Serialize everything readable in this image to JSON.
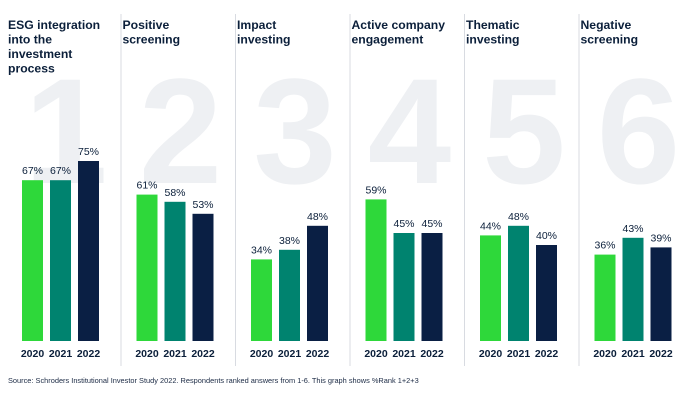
{
  "chart_data": {
    "type": "bar",
    "years": [
      "2020",
      "2021",
      "2022"
    ],
    "colors": [
      "#2ed83a",
      "#00836f",
      "#0a1f44"
    ],
    "ylim": [
      0,
      100
    ],
    "groups": [
      {
        "number": "1",
        "title_lines": [
          "ESG integration",
          "into the",
          "investment",
          "process"
        ],
        "values": [
          67,
          67,
          75
        ]
      },
      {
        "number": "2",
        "title_lines": [
          "Positive",
          "screening"
        ],
        "values": [
          61,
          58,
          53
        ]
      },
      {
        "number": "3",
        "title_lines": [
          "Impact",
          "investing"
        ],
        "values": [
          34,
          38,
          48
        ]
      },
      {
        "number": "4",
        "title_lines": [
          "Active company",
          "engagement"
        ],
        "values": [
          59,
          45,
          45
        ]
      },
      {
        "number": "5",
        "title_lines": [
          "Thematic",
          "investing"
        ],
        "values": [
          44,
          48,
          40
        ]
      },
      {
        "number": "6",
        "title_lines": [
          "Negative",
          "screening"
        ],
        "values": [
          36,
          43,
          39
        ]
      }
    ],
    "value_suffix": "%",
    "source": "Source: Schroders Institutional Investor Study 2022. Respondents ranked answers from 1-6. This graph shows %Rank 1+2+3"
  }
}
